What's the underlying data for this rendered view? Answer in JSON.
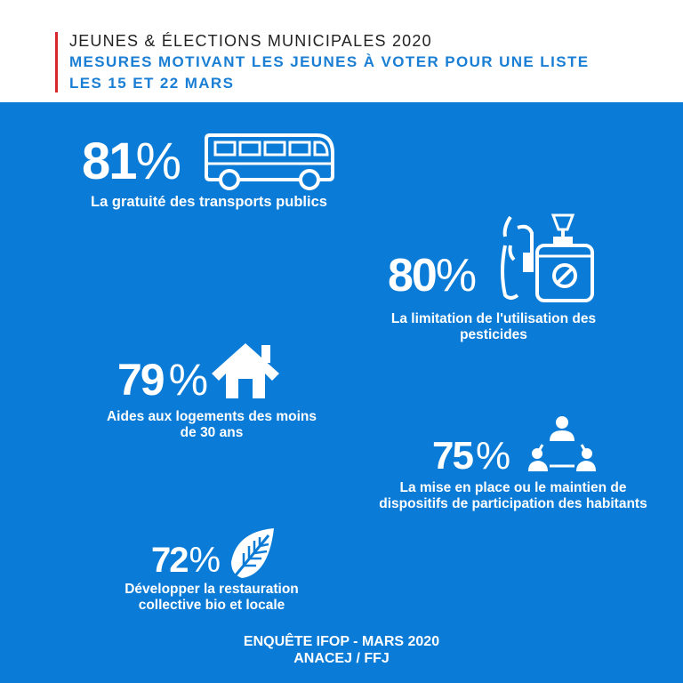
{
  "header": {
    "line1": "JEUNES & ÉLECTIONS MUNICIPALES 2020",
    "line2": "MESURES MOTIVANT LES JEUNES À VOTER POUR UNE LISTE",
    "line3": "LES 15 ET 22 MARS"
  },
  "colors": {
    "accent_bar": "#d62828",
    "header_blue": "#1a7fd4",
    "panel_blue": "#0a7bd6",
    "text_white": "#ffffff"
  },
  "measures": [
    {
      "value": "81",
      "unit": "%",
      "label": "La gratuité des transports publics",
      "icon": "bus-icon"
    },
    {
      "value": "80",
      "unit": "%",
      "label_line1": "La limitation de l'utilisation des",
      "label_line2": "pesticides",
      "icon": "pesticide-sprayer-icon"
    },
    {
      "value": "79",
      "unit": "%",
      "label_line1": "Aides aux logements des moins",
      "label_line2": "de 30 ans",
      "icon": "house-icon"
    },
    {
      "value": "75",
      "unit": "%",
      "label_line1": "La mise en place ou le maintien de",
      "label_line2": "dispositifs de participation des habitants",
      "icon": "participation-group-icon"
    },
    {
      "value": "72",
      "unit": "%",
      "label_line1": "Développer la restauration",
      "label_line2": "collective bio et locale",
      "icon": "leaf-icon"
    }
  ],
  "footer": {
    "line1": "ENQUÊTE IFOP - MARS 2020",
    "line2": "ANACEJ / FFJ"
  }
}
